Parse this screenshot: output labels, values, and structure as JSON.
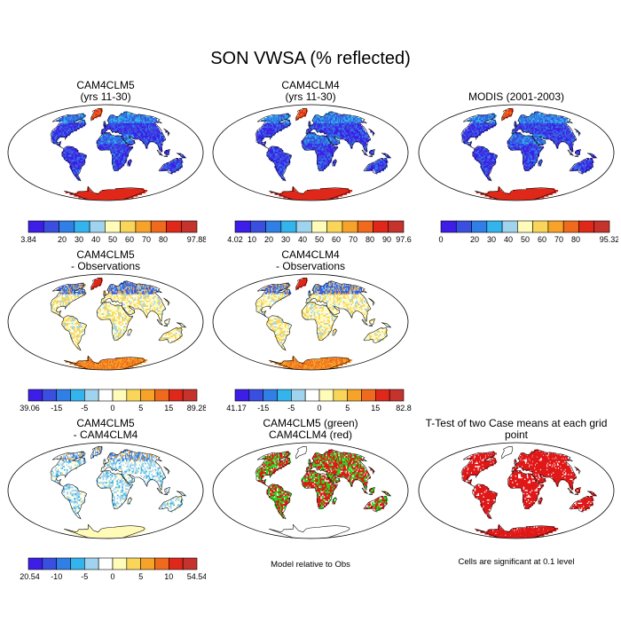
{
  "title": "SON VWSA (% reflected)",
  "colors": {
    "absolute": [
      "#3c1ee6",
      "#3a4fe0",
      "#2f7fe6",
      "#33b4ec",
      "#9fd3ee",
      "#fffbb8",
      "#f9d65a",
      "#f7a32a",
      "#ef6a1c",
      "#e0281a",
      "#c6322c"
    ],
    "diff": [
      "#3c1ee6",
      "#3a4fe0",
      "#2f7fe6",
      "#33b4ec",
      "#9fd3ee",
      "#ffffff",
      "#fffbb8",
      "#f9d65a",
      "#f7a32a",
      "#ef6a1c",
      "#e0281a",
      "#c6322c"
    ]
  },
  "panels": [
    {
      "id": "p1",
      "title_lines": [
        "CAM4CLM5",
        "(yrs 11-30)"
      ],
      "scheme": "absolute",
      "colorbar_labels": [
        "3.84",
        "",
        "20",
        "30",
        "40",
        "50",
        "60",
        "70",
        "80",
        "",
        "97.88"
      ]
    },
    {
      "id": "p2",
      "title_lines": [
        "CAM4CLM4",
        "(yrs 11-30)"
      ],
      "scheme": "absolute",
      "colorbar_labels": [
        "4.02",
        "10",
        "20",
        "30",
        "40",
        "50",
        "60",
        "70",
        "80",
        "90",
        "97.6"
      ]
    },
    {
      "id": "p3",
      "title_lines": [
        "MODIS (2001-2003)"
      ],
      "scheme": "absolute",
      "colorbar_labels": [
        "0",
        "",
        "20",
        "30",
        "40",
        "50",
        "60",
        "70",
        "80",
        "",
        "95.32"
      ]
    },
    {
      "id": "p4",
      "title_lines": [
        "CAM4CLM5",
        "- Observations"
      ],
      "scheme": "diff",
      "colorbar_labels": [
        "-39.06",
        "",
        "-15",
        "",
        "-5",
        "",
        "0",
        "",
        "5",
        "",
        "15",
        "",
        "89.28"
      ]
    },
    {
      "id": "p5",
      "title_lines": [
        "CAM4CLM4",
        "- Observations"
      ],
      "scheme": "diff",
      "colorbar_labels": [
        "-41.17",
        "",
        "-15",
        "",
        "-5",
        "",
        "0",
        "",
        "5",
        "",
        "15",
        "",
        "82.8"
      ]
    },
    {
      "id": "p6",
      "title_lines": [
        "CAM4CLM5",
        "- CAM4CLM4"
      ],
      "scheme": "diff",
      "colorbar_labels": [
        "-20.54",
        "",
        "-10",
        "",
        "-5",
        "",
        "0",
        "",
        "5",
        "",
        "10",
        "",
        "54.54"
      ]
    },
    {
      "id": "p7",
      "title_lines": [
        "CAM4CLM5 (green)",
        "CAM4CLM4 (red)"
      ],
      "scheme": "bin",
      "note": "Model relative to Obs"
    },
    {
      "id": "p8",
      "title_lines": [
        "T-Test of two Case means at each grid point"
      ],
      "scheme": "ttest",
      "note": "Cells are significant at 0.1 level"
    }
  ]
}
